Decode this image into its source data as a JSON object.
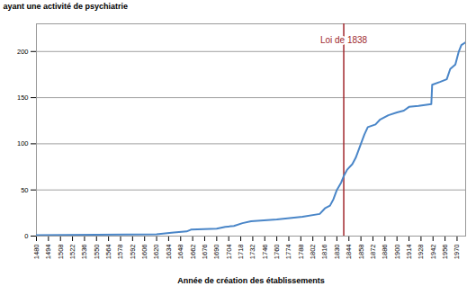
{
  "chart_data": {
    "type": "line",
    "y_label": "ayant une activité de psychiatrie",
    "x_label": "Année de création des établissements",
    "x": [
      1480,
      1620,
      1640,
      1655,
      1660,
      1690,
      1700,
      1710,
      1720,
      1730,
      1760,
      1790,
      1810,
      1816,
      1822,
      1826,
      1830,
      1835,
      1838,
      1842,
      1848,
      1852,
      1858,
      1862,
      1866,
      1875,
      1880,
      1890,
      1900,
      1908,
      1914,
      1925,
      1940,
      1941,
      1950,
      1958,
      1962,
      1968,
      1972,
      1975,
      1980
    ],
    "values": [
      1,
      2,
      4,
      5,
      7,
      8,
      10,
      11,
      14,
      16,
      18,
      21,
      24,
      30,
      33,
      40,
      50,
      58,
      65,
      72,
      78,
      85,
      100,
      110,
      118,
      121,
      126,
      131,
      134,
      136,
      140,
      141,
      143,
      164,
      167,
      170,
      181,
      186,
      200,
      207,
      210
    ],
    "color": "#4a86c8",
    "xlim": [
      1480,
      1980
    ],
    "xticks": [
      1480,
      1494,
      1508,
      1522,
      1536,
      1550,
      1564,
      1578,
      1592,
      1606,
      1620,
      1634,
      1648,
      1662,
      1676,
      1690,
      1704,
      1718,
      1732,
      1746,
      1760,
      1774,
      1788,
      1802,
      1816,
      1830,
      1844,
      1858,
      1872,
      1886,
      1900,
      1914,
      1928,
      1942,
      1956,
      1970
    ],
    "ylim": [
      0,
      230
    ],
    "yticks": [
      0,
      50,
      100,
      150,
      200
    ],
    "grid": true,
    "annotations": [
      {
        "x": 1838,
        "label": "Loi de 1838",
        "color": "#a0282d"
      }
    ]
  }
}
